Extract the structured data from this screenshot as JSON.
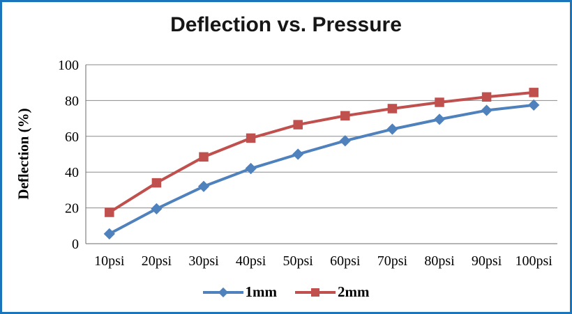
{
  "frame": {
    "border_color": "#1b75bc",
    "background": "#ffffff"
  },
  "chart_data": {
    "type": "line",
    "title": "Deflection vs. Pressure",
    "xlabel": "",
    "ylabel": "Deflection (%)",
    "categories": [
      "10psi",
      "20psi",
      "30psi",
      "40psi",
      "50psi",
      "60psi",
      "70psi",
      "80psi",
      "90psi",
      "100psi"
    ],
    "series": [
      {
        "name": "1mm",
        "color": "#4f81bd",
        "marker": "diamond",
        "values": [
          5.5,
          19.5,
          32,
          42,
          50,
          57.5,
          64,
          69.5,
          74.5,
          77.5
        ]
      },
      {
        "name": "2mm",
        "color": "#c0504d",
        "marker": "square",
        "values": [
          17.5,
          34,
          48.5,
          59,
          66.5,
          71.5,
          75.5,
          79,
          82,
          84.5
        ]
      }
    ],
    "ylim": [
      0,
      100
    ],
    "yticks": [
      0,
      20,
      40,
      60,
      80,
      100
    ],
    "grid": true,
    "grid_color": "#8a8a8a",
    "axis_color": "#6a6a6a",
    "legend_position": "bottom"
  }
}
